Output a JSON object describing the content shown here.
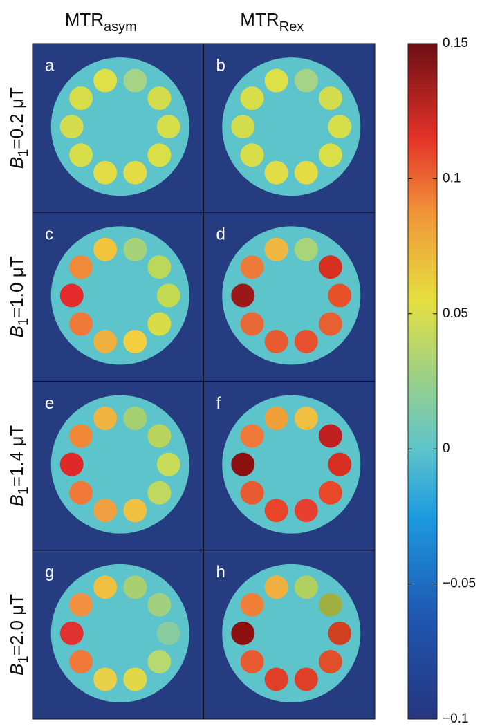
{
  "columns": [
    {
      "main": "MTR",
      "sub": "asym"
    },
    {
      "main": "MTR",
      "sub": "Rex"
    }
  ],
  "rows": [
    {
      "symbol": "B",
      "sub": "1",
      "text": "=0.2 μT"
    },
    {
      "symbol": "B",
      "sub": "1",
      "text": "=1.0 μT"
    },
    {
      "symbol": "B",
      "sub": "1",
      "text": "=1.4 μT"
    },
    {
      "symbol": "B",
      "sub": "1",
      "text": "=2.0 μT"
    }
  ],
  "panels": [
    {
      "letter": "a",
      "vial_colors": [
        "#dfe048",
        "#a6d486",
        "#d2dc4c",
        "#d6de4a",
        "#dadf48",
        "#e4dc44",
        "#e2dc46",
        "#d8de4a",
        "#d2dc4c",
        "#d8de4a"
      ]
    },
    {
      "letter": "b",
      "vial_colors": [
        "#dfe048",
        "#a6d486",
        "#d2dc4c",
        "#d6de4a",
        "#dadf48",
        "#e4dc44",
        "#e2dc46",
        "#d8de4a",
        "#d2dc4c",
        "#d8de4a"
      ]
    },
    {
      "letter": "c",
      "vial_colors": [
        "#f2c43c",
        "#a6d27a",
        "#bcd85a",
        "#c4da50",
        "#d8dc48",
        "#f4d040",
        "#f0b040",
        "#f07838",
        "#e42a2a",
        "#f08a38"
      ]
    },
    {
      "letter": "d",
      "vial_colors": [
        "#f0b840",
        "#a8d47a",
        "#d83020",
        "#e85028",
        "#e86030",
        "#e85030",
        "#e85a30",
        "#e86838",
        "#9c1818",
        "#ec7a38"
      ]
    },
    {
      "letter": "e",
      "vial_colors": [
        "#f2b440",
        "#a4d070",
        "#b8d45c",
        "#c8dc58",
        "#c0d860",
        "#f0c040",
        "#f0a040",
        "#f07838",
        "#e02828",
        "#f08838"
      ]
    },
    {
      "letter": "f",
      "vial_colors": [
        "#f0a038",
        "#f0c040",
        "#c02020",
        "#d83020",
        "#e84828",
        "#e84030",
        "#e84428",
        "#e85a30",
        "#8c1010",
        "#f07838"
      ]
    },
    {
      "letter": "g",
      "vial_colors": [
        "#f0c040",
        "#a8d070",
        "#a0d080",
        "#88cca0",
        "#b8d870",
        "#e0d848",
        "#e8d048",
        "#f07838",
        "#e03030",
        "#f09040"
      ]
    },
    {
      "letter": "h",
      "vial_colors": [
        "#f0b040",
        "#b0d060",
        "#a0b040",
        "#d04020",
        "#e05028",
        "#e04028",
        "#e04028",
        "#e85a30",
        "#8c1010",
        "#f08038"
      ]
    }
  ],
  "colorbar": {
    "clim": [
      -0.1,
      0.15
    ],
    "ticks": [
      0.15,
      0.1,
      0.05,
      0,
      {
        "value": -0.05,
        "label": "−0.05"
      },
      {
        "value": -0.1,
        "label": "−0.1"
      }
    ]
  }
}
